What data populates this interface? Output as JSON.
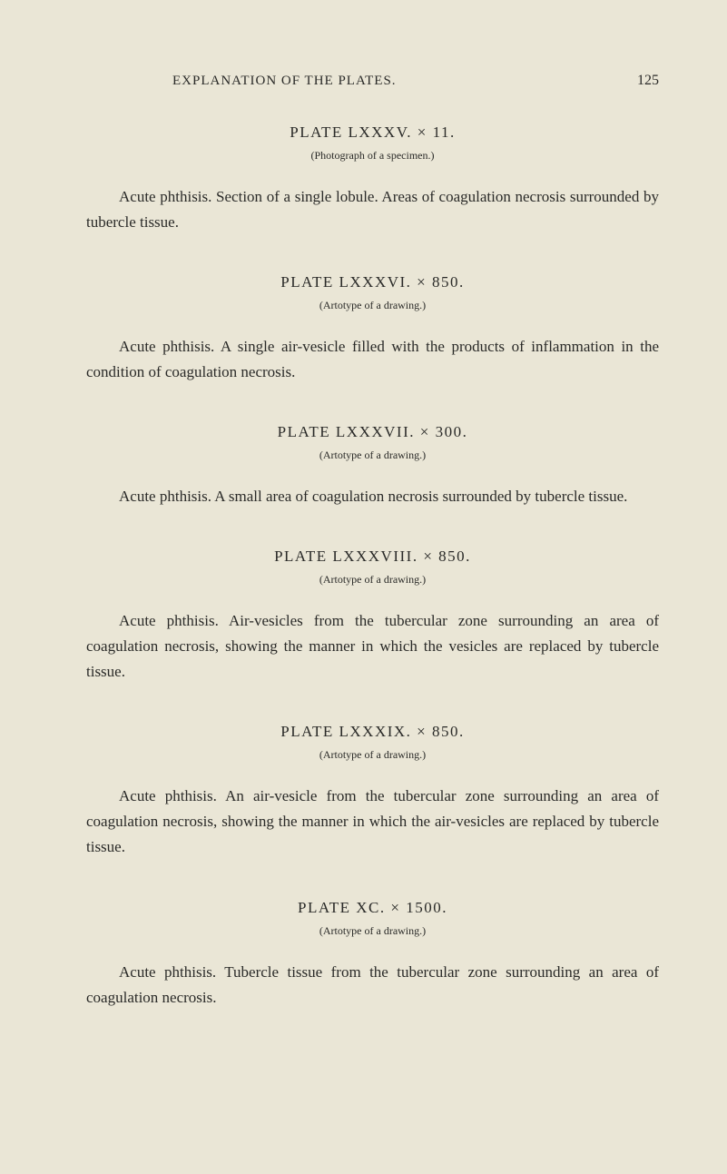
{
  "header": {
    "running_head": "EXPLANATION OF THE PLATES.",
    "page_number": "125"
  },
  "sections": [
    {
      "title": "PLATE LXXXV. × 11.",
      "caption": "(Photograph of a specimen.)",
      "body": "Acute phthisis. Section of a single lobule. Areas of coagulation necrosis surrounded by tubercle tissue."
    },
    {
      "title": "PLATE LXXXVI. × 850.",
      "caption": "(Artotype of a drawing.)",
      "body": "Acute phthisis. A single air-vesicle filled with the products of inflammation in the condition of coagulation necrosis."
    },
    {
      "title": "PLATE LXXXVII. × 300.",
      "caption": "(Artotype of a drawing.)",
      "body": "Acute phthisis. A small area of coagulation necrosis surrounded by tubercle tissue."
    },
    {
      "title": "PLATE LXXXVIII. × 850.",
      "caption": "(Artotype of a drawing.)",
      "body": "Acute phthisis. Air-vesicles from the tubercular zone surrounding an area of coagulation necrosis, showing the manner in which the vesicles are replaced by tubercle tissue."
    },
    {
      "title": "PLATE LXXXIX. × 850.",
      "caption": "(Artotype of a drawing.)",
      "body": "Acute phthisis. An air-vesicle from the tubercular zone surrounding an area of coagulation necrosis, showing the manner in which the air-vesicles are replaced by tubercle tissue."
    },
    {
      "title": "PLATE XC. × 1500.",
      "caption": "(Artotype of a drawing.)",
      "body": "Acute phthisis. Tubercle tissue from the tubercular zone surrounding an area of coagulation necrosis."
    }
  ],
  "colors": {
    "background": "#eae6d6",
    "text": "#2a2a28"
  },
  "typography": {
    "body_fontsize": 17,
    "title_fontsize": 17,
    "caption_fontsize": 12,
    "header_fontsize": 15
  }
}
